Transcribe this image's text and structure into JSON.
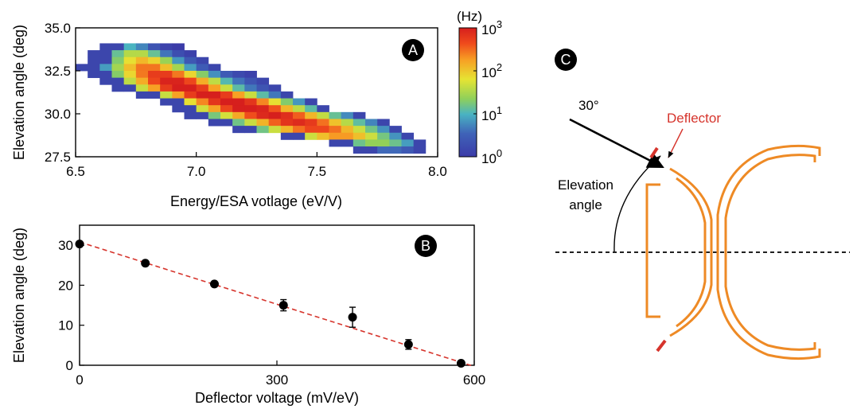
{
  "chart_data": [
    {
      "panel": "A",
      "type": "heatmap",
      "xlabel": "Energy/ESA votlage (eV/V)",
      "ylabel": "Elevation angle (deg)",
      "xlim": [
        6.5,
        8.0
      ],
      "ylim": [
        27.5,
        35.0
      ],
      "x_ticks": [
        "6.5",
        "7.0",
        "7.5",
        "8.0"
      ],
      "y_ticks": [
        "27.5",
        "30.0",
        "32.5",
        "35.0"
      ],
      "colorbar": {
        "unit": "(Hz)",
        "scale": "log",
        "range": [
          1,
          1000
        ],
        "ticks": [
          {
            "base": "10",
            "exp": "0"
          },
          {
            "base": "10",
            "exp": "1"
          },
          {
            "base": "10",
            "exp": "2"
          },
          {
            "base": "10",
            "exp": "3"
          }
        ]
      },
      "cell_size": [
        0.05,
        0.4
      ],
      "rows": [
        {
          "y": 33.9,
          "x0": 6.6,
          "x1": 6.95,
          "peak": 6.72,
          "amp": 1.0,
          "width": 0.1
        },
        {
          "y": 33.5,
          "x0": 6.55,
          "x1": 7.0,
          "peak": 6.75,
          "amp": 1.6,
          "width": 0.13
        },
        {
          "y": 33.1,
          "x0": 6.55,
          "x1": 7.05,
          "peak": 6.78,
          "amp": 2.1,
          "width": 0.15
        },
        {
          "y": 32.7,
          "x0": 6.5,
          "x1": 7.1,
          "peak": 6.8,
          "amp": 2.5,
          "width": 0.17
        },
        {
          "y": 32.3,
          "x0": 6.55,
          "x1": 7.25,
          "peak": 6.85,
          "amp": 2.8,
          "width": 0.2
        },
        {
          "y": 31.9,
          "x0": 6.6,
          "x1": 7.3,
          "peak": 6.9,
          "amp": 3.0,
          "width": 0.22
        },
        {
          "y": 31.5,
          "x0": 6.65,
          "x1": 7.35,
          "peak": 6.95,
          "amp": 3.1,
          "width": 0.22
        },
        {
          "y": 31.1,
          "x0": 6.75,
          "x1": 7.4,
          "peak": 7.05,
          "amp": 3.1,
          "width": 0.22
        },
        {
          "y": 30.7,
          "x0": 6.85,
          "x1": 7.5,
          "peak": 7.15,
          "amp": 3.1,
          "width": 0.24
        },
        {
          "y": 30.3,
          "x0": 6.9,
          "x1": 7.55,
          "peak": 7.22,
          "amp": 3.1,
          "width": 0.25
        },
        {
          "y": 29.9,
          "x0": 6.95,
          "x1": 7.7,
          "peak": 7.32,
          "amp": 3.0,
          "width": 0.26
        },
        {
          "y": 29.5,
          "x0": 7.05,
          "x1": 7.8,
          "peak": 7.42,
          "amp": 2.9,
          "width": 0.26
        },
        {
          "y": 29.1,
          "x0": 7.15,
          "x1": 7.85,
          "peak": 7.5,
          "amp": 2.7,
          "width": 0.25
        },
        {
          "y": 28.7,
          "x0": 7.35,
          "x1": 7.9,
          "peak": 7.6,
          "amp": 2.3,
          "width": 0.22
        },
        {
          "y": 28.3,
          "x0": 7.55,
          "x1": 7.95,
          "peak": 7.75,
          "amp": 1.4,
          "width": 0.18
        },
        {
          "y": 27.9,
          "x0": 7.65,
          "x1": 7.95,
          "peak": 7.8,
          "amp": 0.6,
          "width": 0.12
        }
      ],
      "badge": "A"
    },
    {
      "panel": "B",
      "type": "scatter",
      "xlabel": "Deflector voltage (mV/eV)",
      "ylabel": "Elevation angle (deg)",
      "xlim": [
        0,
        600
      ],
      "ylim": [
        0,
        35
      ],
      "x_ticks": [
        "0",
        "300",
        "600"
      ],
      "y_ticks": [
        "0",
        "10",
        "20",
        "30"
      ],
      "points": [
        {
          "x": 0,
          "y": 30.3,
          "err": 0.6
        },
        {
          "x": 100,
          "y": 25.5,
          "err": 0.6
        },
        {
          "x": 205,
          "y": 20.3,
          "err": 0.6
        },
        {
          "x": 310,
          "y": 15.0,
          "err": 1.4
        },
        {
          "x": 415,
          "y": 12.0,
          "err": 2.5
        },
        {
          "x": 500,
          "y": 5.2,
          "err": 1.2
        },
        {
          "x": 580,
          "y": 0.5,
          "err": 0.5
        }
      ],
      "fit_line": {
        "x": [
          0,
          600
        ],
        "y": [
          30.8,
          -0.3
        ]
      },
      "badge": "B"
    }
  ],
  "diagram": {
    "badge": "C",
    "angle_label": "30°",
    "deflector_label": "Deflector",
    "elevation_label_line1": "Elevation",
    "elevation_label_line2": "angle",
    "colors": {
      "analyzer": "#ee8a25",
      "deflector": "#d6342c",
      "arrow": "#000000"
    }
  }
}
